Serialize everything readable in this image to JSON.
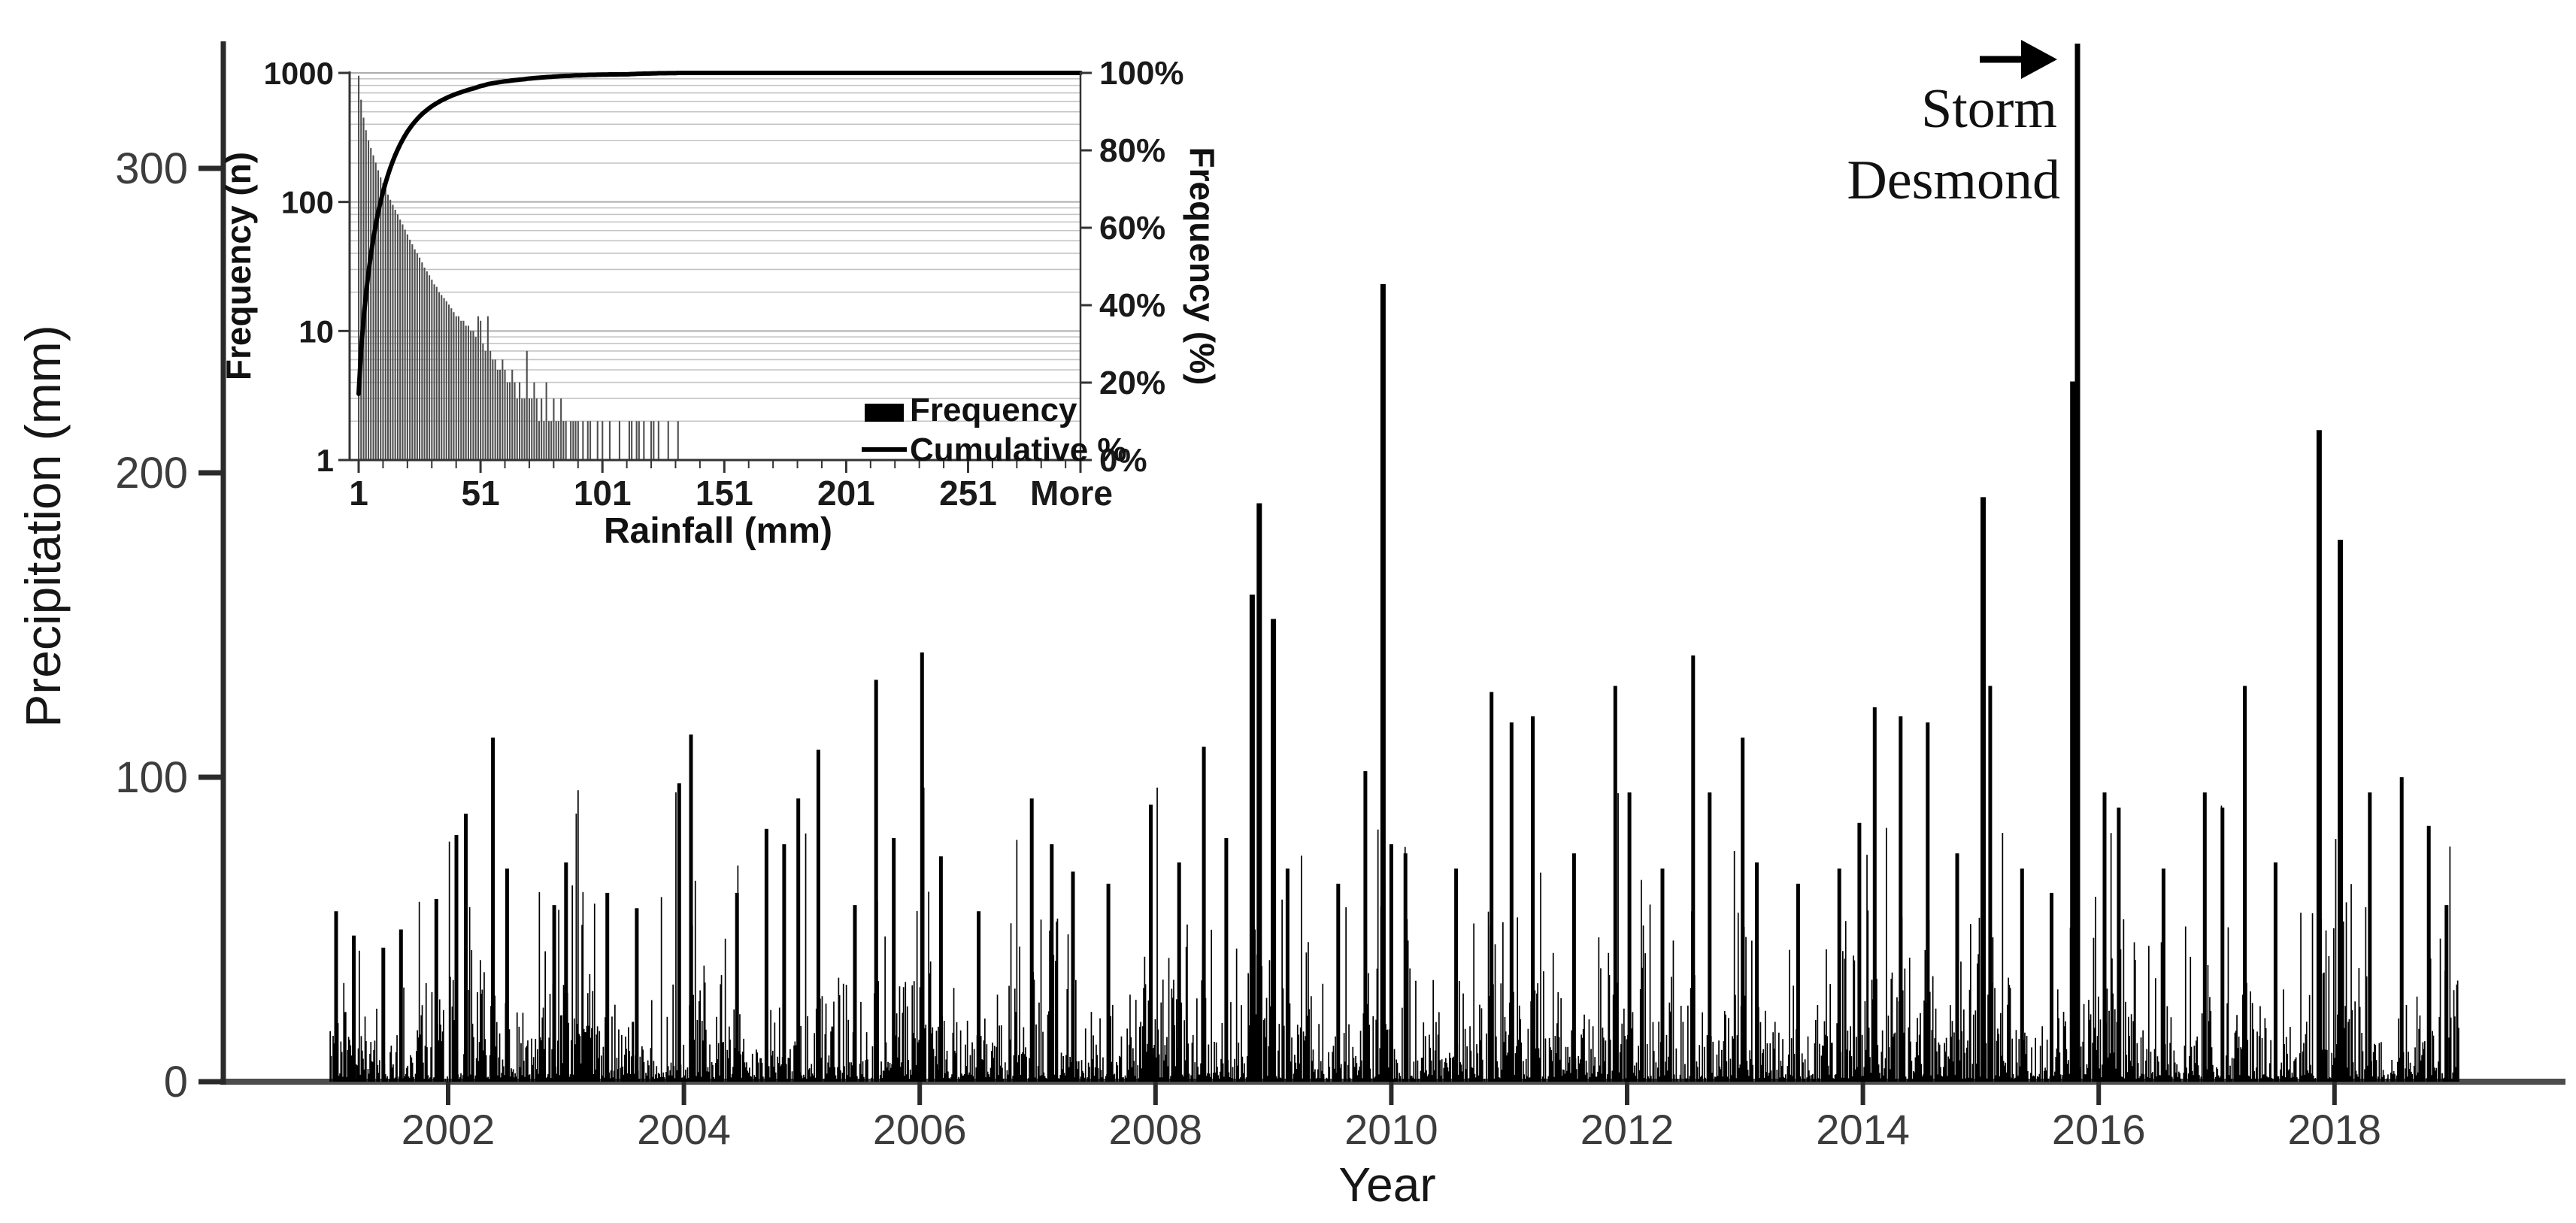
{
  "page": {
    "background": "#ffffff"
  },
  "chart_data": [
    {
      "type": "bar",
      "name": "daily-precipitation-time-series",
      "title": "",
      "xlabel": "Year",
      "ylabel": "Precipitation (mm)",
      "xlim": [
        2001,
        2019.1
      ],
      "ylim": [
        0,
        350
      ],
      "x_ticks": [
        2002,
        2004,
        2006,
        2008,
        2010,
        2012,
        2014,
        2016,
        2018
      ],
      "y_ticks": [
        0,
        100,
        200,
        300
      ],
      "grid": "off",
      "bar_color": "#000000",
      "axis_color": "#2a2a2a",
      "x_axis_color": "#4d4d4d",
      "tick_label_color": "#3d3d3d",
      "title_color": "#161616",
      "annotation": {
        "lines": [
          "Storm",
          "Desmond"
        ],
        "arrow": "right",
        "x_year": 2015.82,
        "value_mm": 341
      },
      "peaks": [
        [
          2001.05,
          56
        ],
        [
          2001.2,
          48
        ],
        [
          2001.45,
          44
        ],
        [
          2001.6,
          50
        ],
        [
          2001.9,
          60
        ],
        [
          2002.07,
          81
        ],
        [
          2002.15,
          88
        ],
        [
          2002.38,
          113
        ],
        [
          2002.5,
          70
        ],
        [
          2002.9,
          58
        ],
        [
          2003.0,
          72
        ],
        [
          2003.35,
          62
        ],
        [
          2003.6,
          57
        ],
        [
          2003.96,
          98
        ],
        [
          2004.06,
          114
        ],
        [
          2004.45,
          62
        ],
        [
          2004.7,
          83
        ],
        [
          2004.85,
          78
        ],
        [
          2004.97,
          93
        ],
        [
          2005.14,
          109
        ],
        [
          2005.45,
          58
        ],
        [
          2005.63,
          132
        ],
        [
          2005.78,
          80
        ],
        [
          2006.02,
          141
        ],
        [
          2006.18,
          74
        ],
        [
          2006.5,
          56
        ],
        [
          2006.95,
          93
        ],
        [
          2007.12,
          78
        ],
        [
          2007.3,
          69
        ],
        [
          2007.6,
          65
        ],
        [
          2007.96,
          91
        ],
        [
          2008.2,
          72
        ],
        [
          2008.41,
          110
        ],
        [
          2008.6,
          80
        ],
        [
          2008.82,
          160
        ],
        [
          2008.88,
          190
        ],
        [
          2009.0,
          152
        ],
        [
          2009.12,
          70
        ],
        [
          2009.55,
          65
        ],
        [
          2009.78,
          102
        ],
        [
          2009.93,
          262
        ],
        [
          2010.0,
          78
        ],
        [
          2010.12,
          75
        ],
        [
          2010.55,
          70
        ],
        [
          2010.85,
          128
        ],
        [
          2011.02,
          118
        ],
        [
          2011.2,
          120
        ],
        [
          2011.55,
          75
        ],
        [
          2011.9,
          130
        ],
        [
          2012.02,
          95
        ],
        [
          2012.3,
          70
        ],
        [
          2012.56,
          140
        ],
        [
          2012.7,
          95
        ],
        [
          2012.98,
          113
        ],
        [
          2013.1,
          72
        ],
        [
          2013.45,
          65
        ],
        [
          2013.8,
          70
        ],
        [
          2013.97,
          85
        ],
        [
          2014.1,
          123
        ],
        [
          2014.32,
          120
        ],
        [
          2014.55,
          118
        ],
        [
          2014.8,
          75
        ],
        [
          2015.02,
          192
        ],
        [
          2015.08,
          130
        ],
        [
          2015.35,
          70
        ],
        [
          2015.6,
          62
        ],
        [
          2015.78,
          230
        ],
        [
          2015.82,
          341
        ],
        [
          2016.05,
          95
        ],
        [
          2016.17,
          90
        ],
        [
          2016.55,
          70
        ],
        [
          2016.9,
          95
        ],
        [
          2017.05,
          90
        ],
        [
          2017.24,
          130
        ],
        [
          2017.5,
          72
        ],
        [
          2017.87,
          214
        ],
        [
          2018.05,
          178
        ],
        [
          2018.3,
          95
        ],
        [
          2018.57,
          100
        ],
        [
          2018.8,
          84
        ],
        [
          2018.95,
          58
        ]
      ],
      "background_series": {
        "seed": 20151205,
        "step_days": 3,
        "base_mean_mm": 13,
        "max_mm": 88,
        "wet_day_fraction": 0.84,
        "seasonal_amplitude": 0.35,
        "seasonal_phase": 0.03
      }
    },
    {
      "type": "pareto",
      "name": "rainfall-frequency-histogram",
      "title": "",
      "xlabel": "Rainfall (mm)",
      "ylabel_left": "Frequency (n)",
      "ylabel_right": "Frequency (%)",
      "x_tick_labels": [
        "1",
        "51",
        "101",
        "151",
        "201",
        "251",
        "More"
      ],
      "x_tick_bins": [
        1,
        51,
        101,
        151,
        201,
        251
      ],
      "y_left_ticks": [
        1,
        10,
        100,
        1000
      ],
      "y_left_scale": "log",
      "y_right_tick_labels": [
        "0%",
        "20%",
        "40%",
        "60%",
        "80%",
        "100%"
      ],
      "legend": [
        {
          "label": "Frequency",
          "swatch": "bar"
        },
        {
          "label": "Cumulative %",
          "swatch": "line"
        }
      ],
      "grid": "on",
      "grid_color": "#c4c4c4",
      "bar_color": "#4f4f4f",
      "line_color": "#000000",
      "axis_color": "#333333",
      "tick_label_color": "#1a1a1a",
      "bin_start_mm": 1,
      "frequencies": [
        950,
        620,
        450,
        360,
        300,
        262,
        230,
        202,
        176,
        155,
        140,
        126,
        114,
        104,
        95,
        87,
        80,
        73,
        67,
        61,
        56,
        51,
        47,
        43,
        40,
        37,
        34,
        31,
        29,
        27,
        25,
        23,
        22,
        20,
        19,
        18,
        17,
        16,
        15,
        14,
        13,
        13,
        12,
        12,
        11,
        11,
        10,
        10,
        9,
        13,
        12,
        8,
        7,
        13,
        7,
        6,
        6,
        5,
        5,
        6,
        5,
        4,
        4,
        5,
        4,
        3,
        4,
        3,
        3,
        7,
        3,
        3,
        4,
        3,
        2,
        3,
        2,
        4,
        2,
        2,
        3,
        2,
        2,
        3,
        2,
        2,
        0,
        2,
        2,
        2,
        2,
        0,
        2,
        0,
        2,
        2,
        0,
        0,
        2,
        0,
        2,
        0,
        0,
        2,
        0,
        0,
        0,
        2,
        0,
        0,
        0,
        2,
        2,
        0,
        2,
        2,
        0,
        2,
        0,
        0,
        2,
        2,
        0,
        2,
        0,
        0,
        0,
        2,
        0,
        0,
        0,
        2
      ]
    }
  ]
}
